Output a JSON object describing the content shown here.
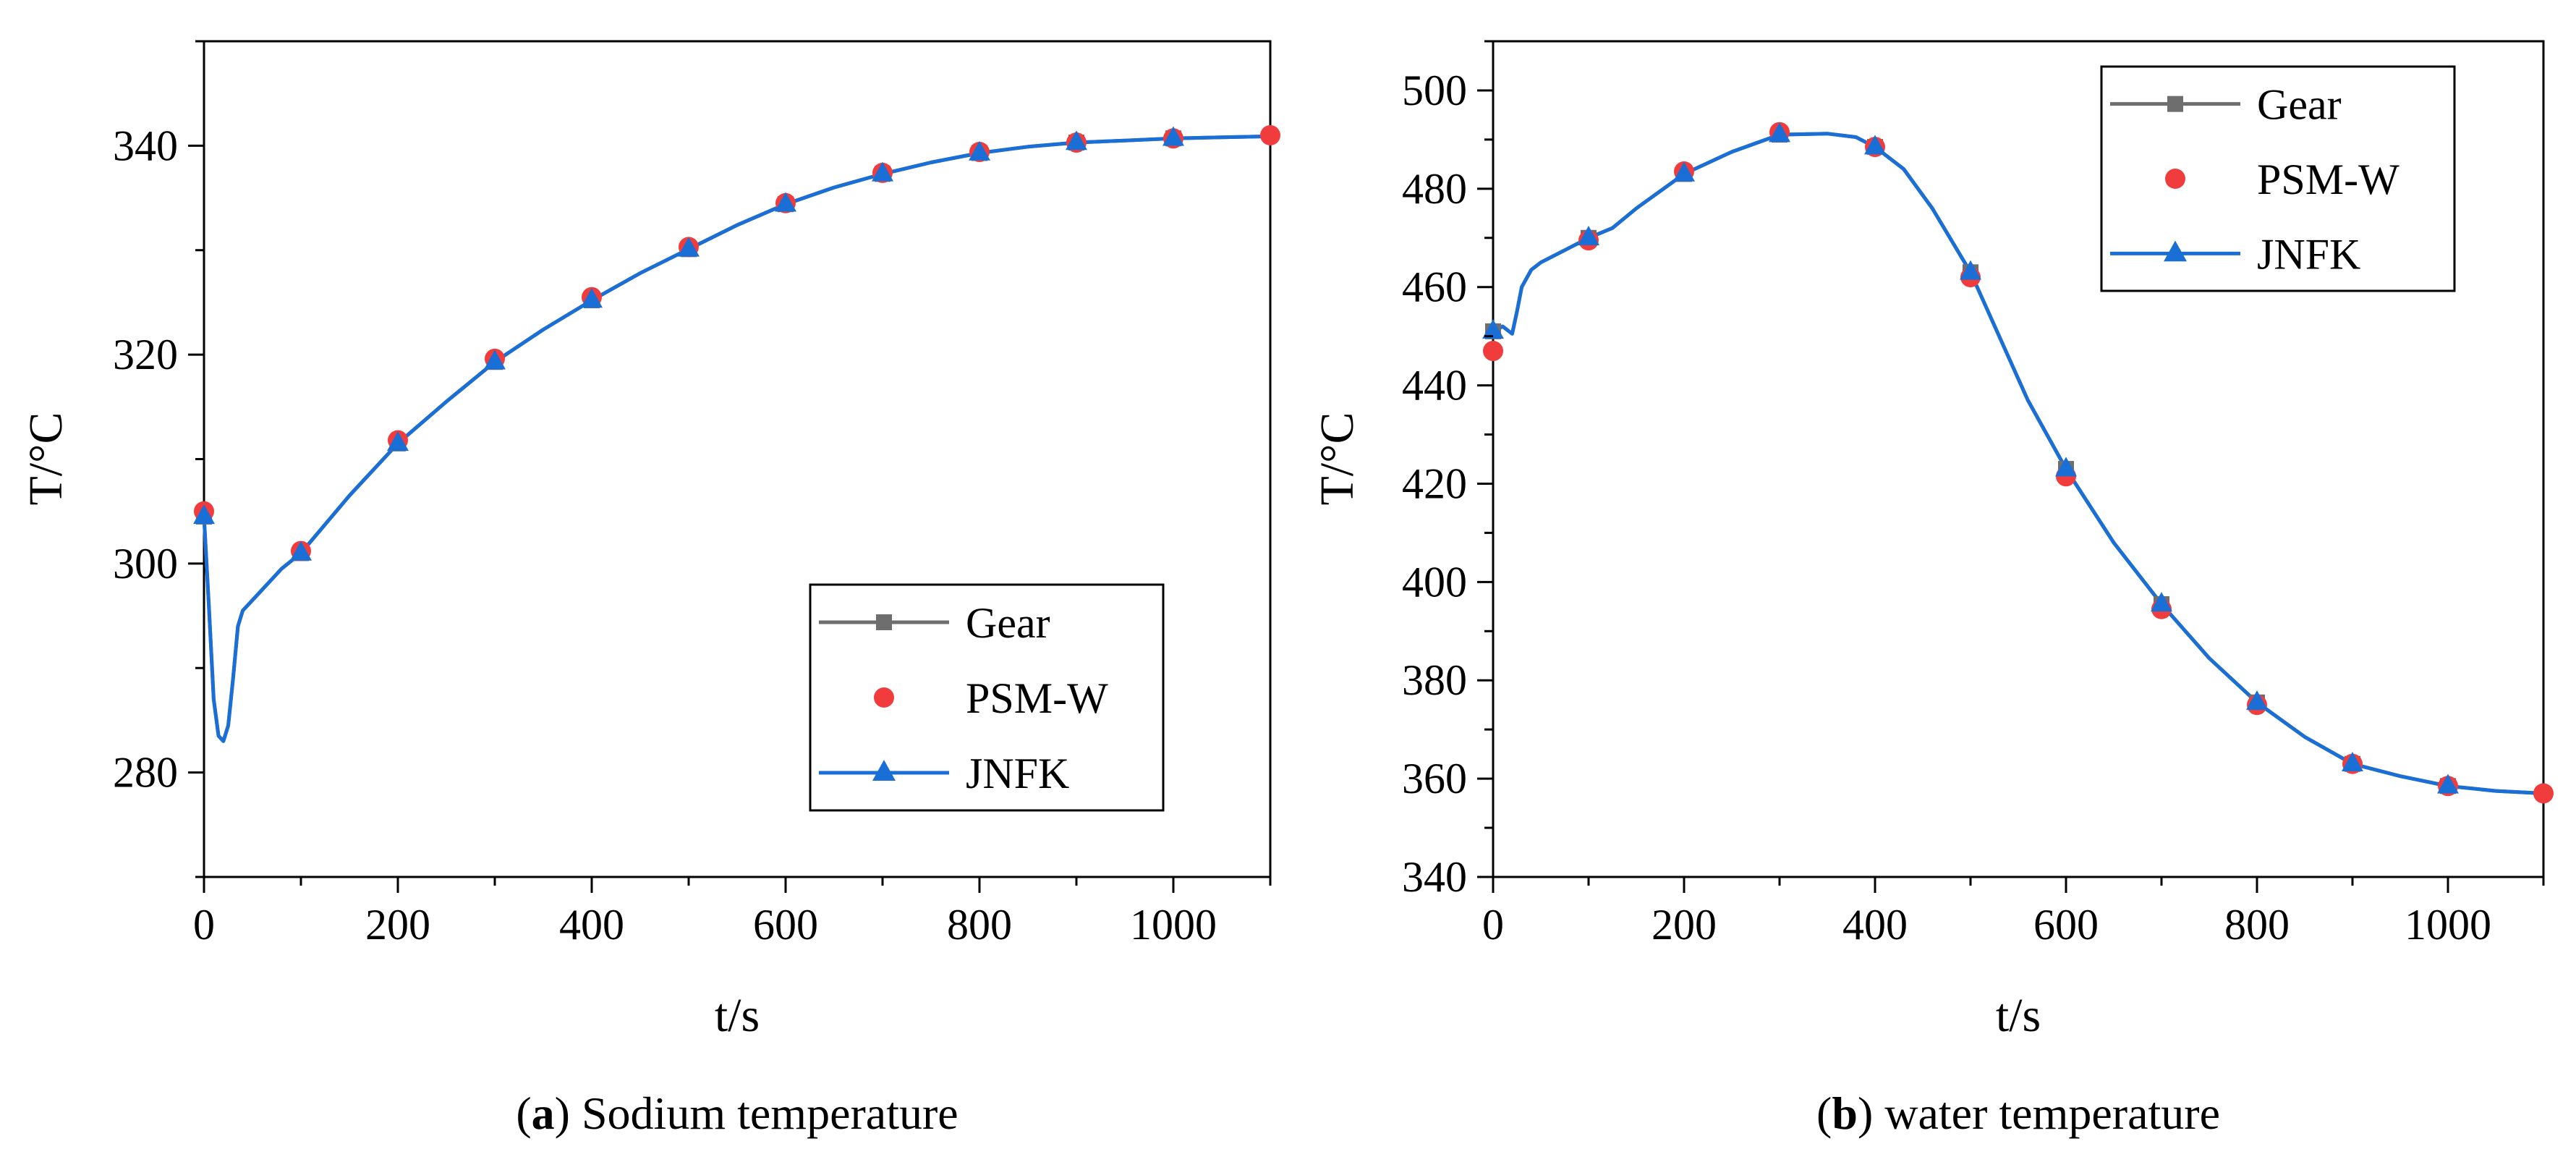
{
  "chart_data": [
    {
      "id": "a",
      "type": "line",
      "title": "Sodium temperature",
      "caption_letter": "a",
      "xlabel": "t/s",
      "ylabel": "T/°C",
      "xlim": [
        0,
        1100
      ],
      "ylim": [
        270,
        350
      ],
      "xticks": [
        0,
        200,
        400,
        600,
        800,
        1000
      ],
      "yticks": [
        280,
        300,
        320,
        340
      ],
      "legend_position": "lower-right",
      "series": [
        {
          "name": "Gear",
          "color": "#6e6e6e",
          "marker": "square",
          "x": [
            0,
            100,
            200,
            300,
            400,
            500,
            600,
            700,
            800,
            900,
            1000
          ],
          "y": [
            304.5,
            301,
            311.5,
            319.3,
            325.2,
            330.1,
            334.4,
            337.3,
            339.3,
            340.3,
            340.7
          ]
        },
        {
          "name": "PSM-W",
          "color": "#f03c3c",
          "marker": "circle",
          "x": [
            0,
            100,
            200,
            300,
            400,
            500,
            600,
            700,
            800,
            900,
            1000,
            1100
          ],
          "y": [
            305,
            301.2,
            311.8,
            319.6,
            325.5,
            330.3,
            334.5,
            337.4,
            339.4,
            340.3,
            340.7,
            341
          ]
        },
        {
          "name": "JNFK",
          "color": "#1a6fd6",
          "marker": "triangle",
          "x": [
            0,
            100,
            200,
            300,
            400,
            500,
            600,
            700,
            800,
            900,
            1000
          ],
          "y": [
            304.5,
            301,
            311.5,
            319.3,
            325.2,
            330.1,
            334.4,
            337.3,
            339.3,
            340.3,
            340.7
          ]
        }
      ],
      "curve": {
        "x": [
          0,
          5,
          10,
          15,
          20,
          25,
          30,
          35,
          40,
          50,
          60,
          80,
          100,
          150,
          200,
          250,
          300,
          350,
          400,
          450,
          500,
          550,
          600,
          650,
          700,
          750,
          800,
          850,
          900,
          950,
          1000,
          1050,
          1100
        ],
        "y": [
          304.5,
          296,
          287,
          283.5,
          283,
          284.5,
          289,
          294,
          295.5,
          296.5,
          297.5,
          299.5,
          301,
          306.5,
          311.5,
          315.5,
          319.3,
          322.4,
          325.2,
          327.8,
          330.1,
          332.4,
          334.4,
          336,
          337.3,
          338.4,
          339.3,
          339.9,
          340.3,
          340.5,
          340.7,
          340.8,
          340.9
        ]
      }
    },
    {
      "id": "b",
      "type": "line",
      "title": "water temperature",
      "caption_letter": "b",
      "xlabel": "t/s",
      "ylabel": "T/°C",
      "xlim": [
        0,
        1100
      ],
      "ylim": [
        340,
        510
      ],
      "xticks": [
        0,
        200,
        400,
        600,
        800,
        1000
      ],
      "yticks": [
        340,
        360,
        380,
        400,
        420,
        440,
        460,
        480,
        500
      ],
      "legend_position": "top-right",
      "series": [
        {
          "name": "Gear",
          "color": "#6e6e6e",
          "marker": "square",
          "x": [
            0,
            100,
            200,
            300,
            400,
            500,
            600,
            700,
            800,
            900,
            1000
          ],
          "y": [
            451,
            470,
            483,
            491,
            488.5,
            463,
            423,
            395.5,
            375.5,
            363,
            358.5
          ]
        },
        {
          "name": "PSM-W",
          "color": "#f03c3c",
          "marker": "circle",
          "x": [
            0,
            100,
            200,
            300,
            400,
            500,
            600,
            700,
            800,
            900,
            1000,
            1100
          ],
          "y": [
            447,
            469.5,
            483.5,
            491.5,
            488.5,
            462,
            421.5,
            394.5,
            375,
            363,
            358.5,
            357
          ]
        },
        {
          "name": "JNFK",
          "color": "#1a6fd6",
          "marker": "triangle",
          "x": [
            0,
            100,
            200,
            300,
            400,
            500,
            600,
            700,
            800,
            900,
            1000
          ],
          "y": [
            451,
            470,
            483,
            491,
            488.5,
            463,
            423,
            395.5,
            375.5,
            363,
            358.5
          ]
        }
      ],
      "curve": {
        "x": [
          0,
          10,
          20,
          25,
          30,
          40,
          50,
          75,
          100,
          125,
          150,
          200,
          250,
          300,
          350,
          380,
          400,
          430,
          460,
          500,
          530,
          560,
          600,
          650,
          700,
          750,
          800,
          850,
          900,
          950,
          1000,
          1050,
          1100
        ],
        "y": [
          451,
          452,
          450.5,
          455,
          460,
          463.5,
          465,
          467.5,
          470,
          472,
          476,
          483,
          487.5,
          491,
          491.2,
          490.5,
          488.5,
          484,
          476,
          463,
          450,
          437,
          423,
          408,
          395.5,
          384.5,
          375.5,
          368.5,
          363,
          360.5,
          358.5,
          357.5,
          357
        ]
      }
    }
  ]
}
